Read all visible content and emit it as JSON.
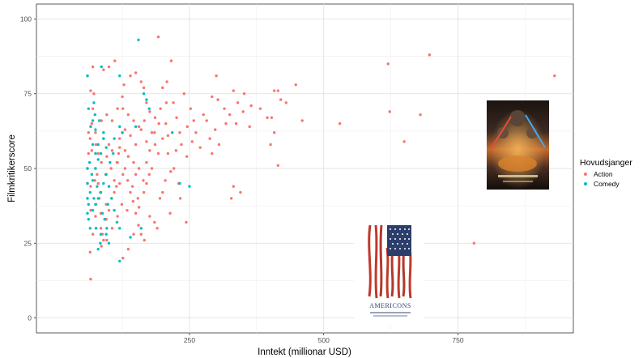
{
  "chart_data": {
    "type": "scatter",
    "xlabel": "Inntekt (millionar USD)",
    "ylabel": "Filmkritikerscore",
    "xlim": [
      -35,
      965
    ],
    "ylim": [
      -5,
      105
    ],
    "x_ticks": [
      250,
      500,
      750
    ],
    "y_ticks": [
      0,
      25,
      50,
      75,
      100
    ],
    "grid": true,
    "legend_position": "right",
    "legend": {
      "title": "Hovudsjanger",
      "entries": [
        {
          "label": "Action",
          "color": "#F8766D"
        },
        {
          "label": "Comedy",
          "color": "#00BFC4"
        }
      ]
    },
    "series": [
      {
        "name": "Action",
        "color": "#F8766D",
        "points": [
          [
            697,
            88
          ],
          [
            620,
            85
          ],
          [
            930,
            81
          ],
          [
            780,
            25
          ],
          [
            623,
            69
          ],
          [
            680,
            68
          ],
          [
            650,
            59
          ],
          [
            530,
            65
          ],
          [
            460,
            66
          ],
          [
            448,
            78
          ],
          [
            415,
            76
          ],
          [
            408,
            76
          ],
          [
            420,
            73
          ],
          [
            403,
            67
          ],
          [
            395,
            67
          ],
          [
            408,
            62
          ],
          [
            401,
            58
          ],
          [
            415,
            51
          ],
          [
            352,
            75
          ],
          [
            340,
            72
          ],
          [
            332,
            76
          ],
          [
            318,
            65
          ],
          [
            337,
            65
          ],
          [
            362,
            64
          ],
          [
            300,
            81
          ],
          [
            292,
            74
          ],
          [
            303,
            73
          ],
          [
            276,
            68
          ],
          [
            282,
            66
          ],
          [
            292,
            55
          ],
          [
            305,
            58
          ],
          [
            240,
            75
          ],
          [
            252,
            70
          ],
          [
            258,
            66
          ],
          [
            232,
            62
          ],
          [
            332,
            44
          ],
          [
            345,
            42
          ],
          [
            328,
            40
          ],
          [
            244,
            32
          ],
          [
            221,
            50
          ],
          [
            230,
            45
          ],
          [
            233,
            40
          ],
          [
            210,
            61
          ],
          [
            214,
            35
          ],
          [
            192,
            94
          ],
          [
            208,
            79
          ],
          [
            216,
            86
          ],
          [
            200,
            77
          ],
          [
            207,
            72
          ],
          [
            220,
            72
          ],
          [
            193,
            65
          ],
          [
            180,
            62
          ],
          [
            170,
            72
          ],
          [
            160,
            79
          ],
          [
            165,
            77
          ],
          [
            150,
            82
          ],
          [
            140,
            81
          ],
          [
            125,
            74
          ],
          [
            128,
            78
          ],
          [
            111,
            86
          ],
          [
            100,
            84
          ],
          [
            90,
            83
          ],
          [
            70,
            84
          ],
          [
            66,
            76
          ],
          [
            60,
            81
          ],
          [
            75,
            62
          ],
          [
            80,
            55
          ],
          [
            90,
            60
          ],
          [
            100,
            58
          ],
          [
            120,
            57
          ],
          [
            130,
            63
          ],
          [
            140,
            61
          ],
          [
            150,
            58
          ],
          [
            160,
            63
          ],
          [
            170,
            59
          ],
          [
            185,
            62
          ],
          [
            192,
            55
          ],
          [
            200,
            60
          ],
          [
            215,
            49
          ],
          [
            170,
            52
          ],
          [
            150,
            48
          ],
          [
            130,
            50
          ],
          [
            120,
            45
          ],
          [
            110,
            42
          ],
          [
            100,
            44
          ],
          [
            95,
            38
          ],
          [
            85,
            35
          ],
          [
            75,
            34
          ],
          [
            70,
            28
          ],
          [
            65,
            22
          ],
          [
            66,
            13
          ],
          [
            60,
            45
          ],
          [
            60,
            40
          ],
          [
            60,
            50
          ],
          [
            62,
            55
          ],
          [
            65,
            60
          ],
          [
            68,
            65
          ],
          [
            70,
            70
          ],
          [
            72,
            75
          ],
          [
            75,
            50
          ],
          [
            78,
            48
          ],
          [
            80,
            45
          ],
          [
            82,
            40
          ],
          [
            85,
            30
          ],
          [
            88,
            28
          ],
          [
            90,
            26
          ],
          [
            95,
            33
          ],
          [
            100,
            36
          ],
          [
            105,
            40
          ],
          [
            110,
            46
          ],
          [
            115,
            52
          ],
          [
            118,
            55
          ],
          [
            120,
            60
          ],
          [
            125,
            62
          ],
          [
            130,
            56
          ],
          [
            135,
            46
          ],
          [
            140,
            42
          ],
          [
            145,
            39
          ],
          [
            150,
            35
          ],
          [
            155,
            31
          ],
          [
            160,
            28
          ],
          [
            165,
            42
          ],
          [
            170,
            45
          ],
          [
            175,
            48
          ],
          [
            180,
            50
          ],
          [
            185,
            32
          ],
          [
            190,
            30
          ],
          [
            195,
            40
          ],
          [
            200,
            42
          ],
          [
            205,
            46
          ],
          [
            210,
            55
          ],
          [
            225,
            56
          ],
          [
            235,
            58
          ],
          [
            245,
            54
          ],
          [
            255,
            59
          ],
          [
            262,
            62
          ],
          [
            270,
            57
          ],
          [
            288,
            60
          ],
          [
            298,
            63
          ],
          [
            315,
            70
          ],
          [
            325,
            68
          ],
          [
            350,
            69
          ],
          [
            365,
            71
          ],
          [
            382,
            70
          ],
          [
            430,
            72
          ],
          [
            76,
            58
          ],
          [
            86,
            66
          ],
          [
            96,
            68
          ],
          [
            106,
            66
          ],
          [
            116,
            70
          ],
          [
            126,
            70
          ],
          [
            136,
            68
          ],
          [
            146,
            66
          ],
          [
            156,
            64
          ],
          [
            166,
            66
          ],
          [
            176,
            69
          ],
          [
            186,
            67
          ],
          [
            196,
            70
          ],
          [
            206,
            65
          ],
          [
            226,
            67
          ],
          [
            246,
            64
          ],
          [
            86,
            52
          ],
          [
            96,
            54
          ],
          [
            106,
            56
          ],
          [
            116,
            52
          ],
          [
            126,
            48
          ],
          [
            136,
            54
          ],
          [
            146,
            52
          ],
          [
            156,
            50
          ],
          [
            176,
            56
          ],
          [
            186,
            58
          ],
          [
            66,
            44
          ],
          [
            66,
            36
          ],
          [
            76,
            38
          ],
          [
            76,
            30
          ],
          [
            86,
            24
          ],
          [
            96,
            26
          ],
          [
            106,
            30
          ],
          [
            116,
            34
          ],
          [
            126,
            20
          ],
          [
            136,
            23
          ],
          [
            146,
            28
          ],
          [
            156,
            37
          ],
          [
            166,
            26
          ],
          [
            176,
            34
          ],
          [
            62,
            62
          ],
          [
            68,
            56
          ],
          [
            74,
            46
          ],
          [
            84,
            42
          ],
          [
            94,
            48
          ],
          [
            104,
            50
          ],
          [
            114,
            44
          ],
          [
            124,
            38
          ],
          [
            134,
            36
          ],
          [
            144,
            44
          ],
          [
            154,
            40
          ],
          [
            164,
            46
          ]
        ]
      },
      {
        "name": "Comedy",
        "color": "#00BFC4",
        "points": [
          [
            155,
            93
          ],
          [
            72,
            72
          ],
          [
            70,
            66
          ],
          [
            75,
            63
          ],
          [
            60,
            81
          ],
          [
            86,
            84
          ],
          [
            120,
            81
          ],
          [
            165,
            75
          ],
          [
            170,
            73
          ],
          [
            175,
            70
          ],
          [
            150,
            64
          ],
          [
            125,
            62
          ],
          [
            120,
            64
          ],
          [
            110,
            60
          ],
          [
            95,
            57
          ],
          [
            90,
            60
          ],
          [
            85,
            55
          ],
          [
            80,
            53
          ],
          [
            75,
            50
          ],
          [
            70,
            46
          ],
          [
            65,
            42
          ],
          [
            62,
            38
          ],
          [
            60,
            50
          ],
          [
            60,
            45
          ],
          [
            60,
            40
          ],
          [
            60,
            35
          ],
          [
            62,
            33
          ],
          [
            65,
            30
          ],
          [
            70,
            36
          ],
          [
            75,
            38
          ],
          [
            80,
            40
          ],
          [
            85,
            42
          ],
          [
            90,
            45
          ],
          [
            95,
            48
          ],
          [
            100,
            44
          ],
          [
            105,
            40
          ],
          [
            110,
            36
          ],
          [
            115,
            32
          ],
          [
            120,
            30
          ],
          [
            85,
            28
          ],
          [
            95,
            28
          ],
          [
            100,
            25
          ],
          [
            120,
            19
          ],
          [
            80,
            23
          ],
          [
            140,
            27
          ],
          [
            160,
            30
          ],
          [
            218,
            62
          ],
          [
            232,
            45
          ],
          [
            250,
            44
          ],
          [
            70,
            58
          ],
          [
            75,
            55
          ],
          [
            80,
            58
          ],
          [
            68,
            48
          ],
          [
            72,
            40
          ],
          [
            78,
            44
          ],
          [
            88,
            35
          ],
          [
            92,
            33
          ],
          [
            98,
            38
          ],
          [
            102,
            52
          ],
          [
            108,
            55
          ],
          [
            62,
            70
          ],
          [
            66,
            64
          ],
          [
            74,
            68
          ],
          [
            82,
            66
          ],
          [
            90,
            62
          ],
          [
            64,
            52
          ],
          [
            76,
            30
          ],
          [
            84,
            25
          ],
          [
            96,
            30
          ]
        ]
      }
    ]
  },
  "posters": [
    {
      "name": "americons-poster",
      "caption": "AMERICONS"
    },
    {
      "name": "star-wars-poster",
      "caption": ""
    }
  ]
}
